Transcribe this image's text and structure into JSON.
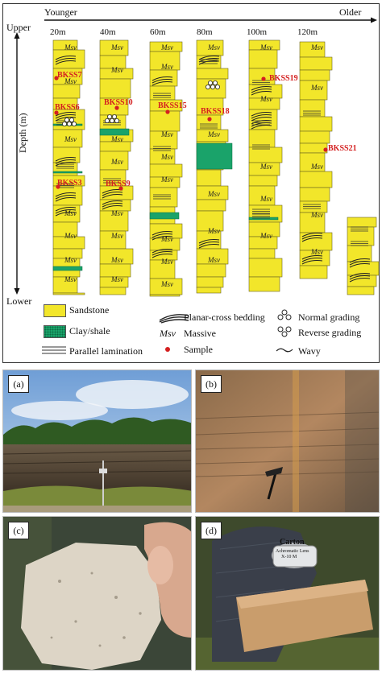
{
  "figure": {
    "axis": {
      "left_label": "Younger",
      "right_label": "Older",
      "upper": "Upper",
      "lower": "Lower",
      "depth": "Depth (m)"
    },
    "columns": [
      "20m",
      "40m",
      "60m",
      "80m",
      "100m",
      "120m"
    ],
    "samples": [
      "BKSS7",
      "BKSS6",
      "BKSS3",
      "BKSS10",
      "BKSS9",
      "BKSS15",
      "BKSS18",
      "BKSS19",
      "BKSS21"
    ],
    "massive_label": "Msv",
    "legend": {
      "sandstone": "Sandstone",
      "clay": "Clay/shale",
      "parallel": "Parallel lamination",
      "planar": "Planar-cross bedding",
      "massive_code": "Msv",
      "massive": "Massive",
      "sample": "Sample",
      "normal_grading": "Normal grading",
      "reverse_grading": "Reverse grading",
      "wavy": "Wavy"
    },
    "colors": {
      "sandstone": "#f2e62a",
      "clay": "#1aa36a",
      "sample": "#d42020"
    }
  },
  "photos": [
    {
      "tag": "(a)"
    },
    {
      "tag": "(b)"
    },
    {
      "tag": "(c)"
    },
    {
      "tag": "(d)",
      "label_line1": "Carton",
      "label_line2": "Achromatic Lens",
      "label_line3": "X-10 M"
    }
  ]
}
